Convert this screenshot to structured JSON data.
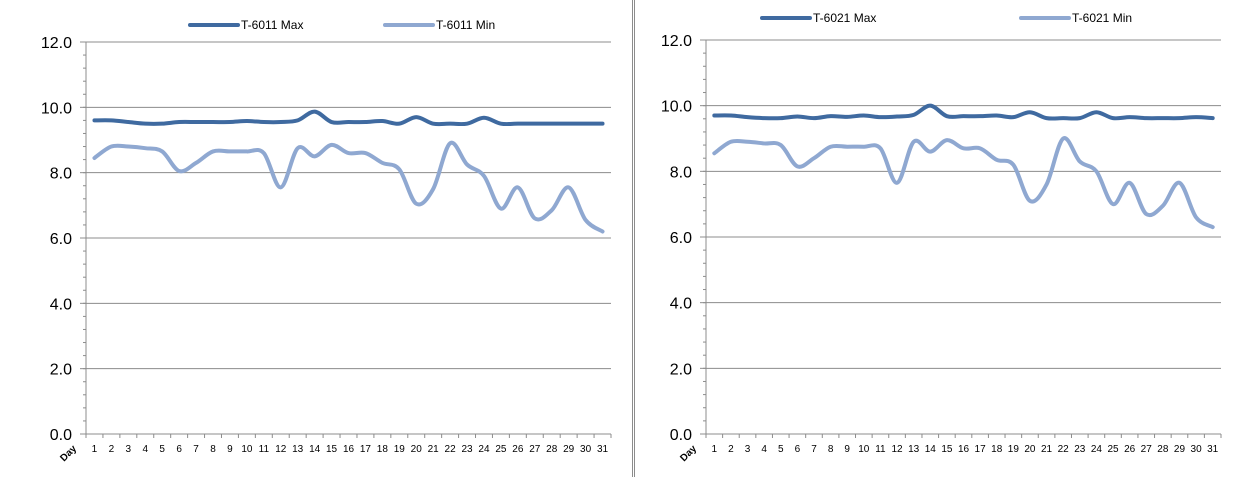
{
  "chart_data": [
    {
      "type": "line",
      "x": [
        1,
        2,
        3,
        4,
        5,
        6,
        7,
        8,
        9,
        10,
        11,
        12,
        13,
        14,
        15,
        16,
        17,
        18,
        19,
        20,
        21,
        22,
        23,
        24,
        25,
        26,
        27,
        28,
        29,
        30,
        31
      ],
      "x_first_label": "Day",
      "ylim": [
        0,
        12
      ],
      "yticks": [
        "0.0",
        "2.0",
        "4.0",
        "6.0",
        "8.0",
        "10.0",
        "12.0"
      ],
      "grid": true,
      "legend_position": "top",
      "series": [
        {
          "name": "T-6011 Max",
          "color": "#3f6aa0",
          "values": [
            9.6,
            9.6,
            9.55,
            9.5,
            9.5,
            9.55,
            9.55,
            9.55,
            9.55,
            9.58,
            9.55,
            9.55,
            9.6,
            9.87,
            9.55,
            9.55,
            9.55,
            9.58,
            9.5,
            9.7,
            9.5,
            9.5,
            9.5,
            9.68,
            9.5,
            9.5,
            9.5,
            9.5,
            9.5,
            9.5,
            9.5
          ]
        },
        {
          "name": "T-6011 Min",
          "color": "#8fa8d1",
          "values": [
            8.45,
            8.8,
            8.8,
            8.75,
            8.65,
            8.05,
            8.3,
            8.65,
            8.65,
            8.65,
            8.6,
            7.55,
            8.75,
            8.5,
            8.85,
            8.6,
            8.6,
            8.3,
            8.1,
            7.05,
            7.5,
            8.9,
            8.25,
            7.9,
            6.9,
            7.55,
            6.6,
            6.85,
            7.55,
            6.55,
            6.2
          ]
        }
      ]
    },
    {
      "type": "line",
      "x": [
        1,
        2,
        3,
        4,
        5,
        6,
        7,
        8,
        9,
        10,
        11,
        12,
        13,
        14,
        15,
        16,
        17,
        18,
        19,
        20,
        21,
        22,
        23,
        24,
        25,
        26,
        27,
        28,
        29,
        30,
        31
      ],
      "x_first_label": "Day",
      "ylim": [
        0,
        12
      ],
      "yticks": [
        "0.0",
        "2.0",
        "4.0",
        "6.0",
        "8.0",
        "10.0",
        "12.0"
      ],
      "grid": true,
      "legend_position": "top",
      "series": [
        {
          "name": "T-6021 Max",
          "color": "#3f6aa0",
          "values": [
            9.7,
            9.7,
            9.65,
            9.62,
            9.62,
            9.67,
            9.62,
            9.68,
            9.66,
            9.7,
            9.65,
            9.67,
            9.72,
            10.0,
            9.68,
            9.68,
            9.68,
            9.7,
            9.65,
            9.8,
            9.62,
            9.62,
            9.62,
            9.8,
            9.62,
            9.65,
            9.62,
            9.62,
            9.62,
            9.65,
            9.62
          ]
        },
        {
          "name": "T-6021 Min",
          "color": "#8fa8d1",
          "values": [
            8.55,
            8.9,
            8.9,
            8.85,
            8.8,
            8.15,
            8.4,
            8.75,
            8.75,
            8.75,
            8.7,
            7.65,
            8.9,
            8.6,
            8.95,
            8.7,
            8.7,
            8.35,
            8.2,
            7.1,
            7.6,
            9.0,
            8.3,
            8.0,
            7.0,
            7.65,
            6.7,
            6.95,
            7.65,
            6.6,
            6.3
          ]
        }
      ]
    }
  ]
}
